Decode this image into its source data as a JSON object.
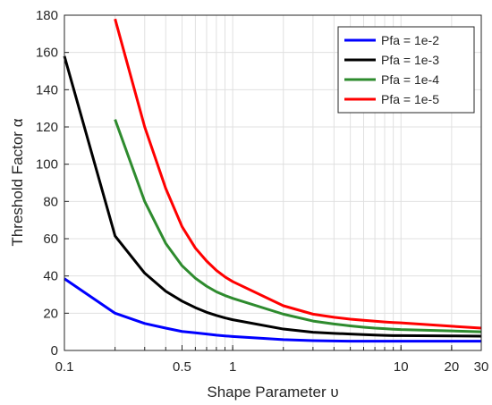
{
  "chart_data": {
    "type": "line",
    "xscale": "log",
    "xlim": [
      0.1,
      30
    ],
    "ylim": [
      0,
      180
    ],
    "grid": true,
    "legend_position": "top-right",
    "xlabel": "Shape Parameter υ",
    "ylabel": "Threshold Factor α",
    "xticks": [
      0.1,
      0.5,
      1,
      10,
      20,
      30
    ],
    "xtick_labels": [
      "0.1",
      "0.5",
      "1",
      "10",
      "20",
      "30"
    ],
    "yticks": [
      0,
      20,
      40,
      60,
      80,
      100,
      120,
      140,
      160,
      180
    ],
    "ytick_labels": [
      "0",
      "20",
      "40",
      "60",
      "80",
      "100",
      "120",
      "140",
      "160",
      "180"
    ],
    "series": [
      {
        "name": "Pfa = 1e-2",
        "color": "#0000ff",
        "x": [
          0.1,
          0.2,
          0.3,
          0.4,
          0.5,
          0.6,
          0.7,
          0.8,
          0.9,
          1,
          2,
          3,
          4,
          5,
          6,
          7,
          8,
          9,
          10,
          20,
          30
        ],
        "y": [
          38.5,
          20,
          14.5,
          12,
          10.2,
          9.5,
          8.8,
          8.2,
          7.8,
          7.5,
          5.8,
          5.3,
          5.1,
          5,
          5,
          5,
          5,
          5,
          5,
          5,
          5
        ]
      },
      {
        "name": "Pfa = 1e-3",
        "color": "#000000",
        "x": [
          0.1,
          0.2,
          0.3,
          0.4,
          0.5,
          0.6,
          0.7,
          0.8,
          0.9,
          1,
          2,
          3,
          4,
          5,
          6,
          7,
          8,
          9,
          10,
          20,
          30
        ],
        "y": [
          158,
          61.5,
          41.5,
          31.8,
          26.5,
          23,
          20.5,
          18.8,
          17.5,
          16.5,
          11.5,
          9.8,
          9.2,
          8.8,
          8.5,
          8.3,
          8.1,
          8,
          8,
          7.8,
          7.7
        ]
      },
      {
        "name": "Pfa = 1e-4",
        "color": "#2e8b2e",
        "x": [
          0.2,
          0.3,
          0.4,
          0.5,
          0.6,
          0.7,
          0.8,
          0.9,
          1,
          2,
          3,
          4,
          5,
          6,
          7,
          8,
          9,
          10,
          20,
          30
        ],
        "y": [
          124,
          80,
          57.5,
          45.5,
          38.8,
          34.5,
          31.5,
          29.5,
          28,
          19.5,
          15.8,
          14.2,
          13.2,
          12.5,
          12,
          11.7,
          11.4,
          11.2,
          10.5,
          10
        ]
      },
      {
        "name": "Pfa = 1e-5",
        "color": "#ff0000",
        "x": [
          0.2,
          0.3,
          0.4,
          0.5,
          0.6,
          0.7,
          0.8,
          0.9,
          1,
          2,
          3,
          4,
          5,
          6,
          7,
          8,
          9,
          10,
          20,
          30
        ],
        "y": [
          178,
          120,
          87,
          66.5,
          55,
          48,
          43,
          39.5,
          37,
          24,
          19.5,
          17.8,
          16.8,
          16.2,
          15.7,
          15.3,
          15,
          14.8,
          13,
          12
        ]
      }
    ]
  }
}
